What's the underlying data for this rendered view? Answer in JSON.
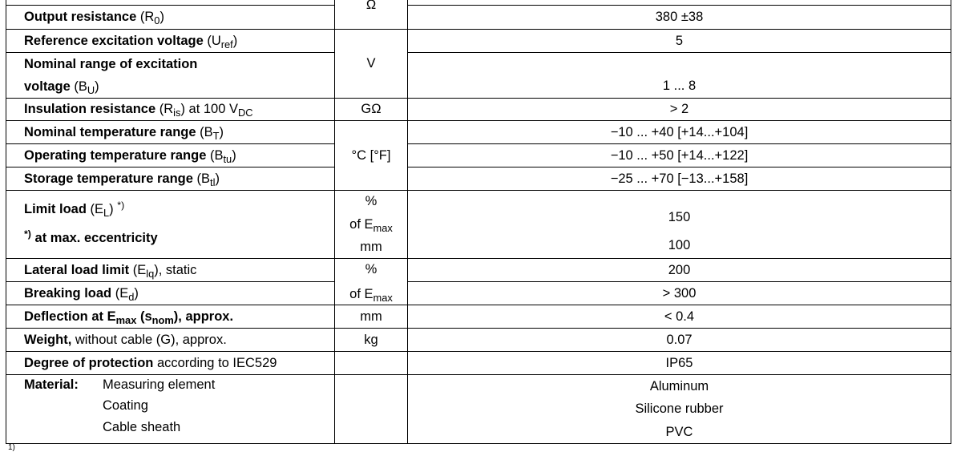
{
  "rows": [
    {
      "label": [],
      "unit": "Ω",
      "value": ""
    },
    {
      "label": [
        {
          "t": "Output resistance",
          "s": "b"
        },
        {
          "t": " (R",
          "s": "n"
        },
        {
          "t": "0",
          "s": "sub"
        },
        {
          "t": ")",
          "s": "n"
        }
      ],
      "value": "380 ±38"
    },
    {
      "label": [
        {
          "t": "Reference excitation voltage",
          "s": "b"
        },
        {
          "t": " (U",
          "s": "n"
        },
        {
          "t": "ref",
          "s": "sub"
        },
        {
          "t": ")",
          "s": "n"
        }
      ],
      "unit": "V",
      "value": "5"
    },
    {
      "label": [
        {
          "t": "Nominal range of excitation",
          "s": "b"
        },
        {
          "t": "",
          "s": "br"
        },
        {
          "t": "voltage",
          "s": "b"
        },
        {
          "t": " (B",
          "s": "n"
        },
        {
          "t": "U",
          "s": "sub"
        },
        {
          "t": ")",
          "s": "n"
        }
      ],
      "value": "1 ... 8"
    },
    {
      "label": [
        {
          "t": "Insulation resistance",
          "s": "b"
        },
        {
          "t": " (R",
          "s": "n"
        },
        {
          "t": "is",
          "s": "sub"
        },
        {
          "t": ") at 100 V",
          "s": "n"
        },
        {
          "t": "DC",
          "s": "sub"
        }
      ],
      "unit": "GΩ",
      "value": "> 2"
    },
    {
      "label": [
        {
          "t": "Nominal temperature range",
          "s": "b"
        },
        {
          "t": " (B",
          "s": "n"
        },
        {
          "t": "T",
          "s": "sub"
        },
        {
          "t": ")",
          "s": "n"
        }
      ],
      "unit": "°C [°F]",
      "value": "−10 ... +40 [+14...+104]"
    },
    {
      "label": [
        {
          "t": "Operating temperature range",
          "s": "b"
        },
        {
          "t": " (B",
          "s": "n"
        },
        {
          "t": "tu",
          "s": "sub"
        },
        {
          "t": ")",
          "s": "n"
        }
      ],
      "value": "−10 ... +50 [+14...+122]"
    },
    {
      "label": [
        {
          "t": "Storage temperature range",
          "s": "b"
        },
        {
          "t": " (B",
          "s": "n"
        },
        {
          "t": "tl",
          "s": "sub"
        },
        {
          "t": ")",
          "s": "n"
        }
      ],
      "value": "−25 ... +70 [−13...+158]"
    },
    {
      "label": [
        {
          "t": "Limit load",
          "s": "b"
        },
        {
          "t": " (E",
          "s": "n"
        },
        {
          "t": "L",
          "s": "sub"
        },
        {
          "t": ") ",
          "s": "n"
        },
        {
          "t": "*)",
          "s": "sup"
        },
        {
          "t": "",
          "s": "gap"
        },
        {
          "t": "*)",
          "s": "bsup"
        },
        {
          "t": " at max. eccentricity",
          "s": "b"
        }
      ],
      "unit_lines": [
        {
          "t": "%"
        },
        {
          "t": "of E",
          "sub": "max"
        },
        {
          "t": "mm"
        }
      ],
      "values": [
        "150",
        "100"
      ]
    },
    {
      "label": [
        {
          "t": "Lateral load limit",
          "s": "b"
        },
        {
          "t": " (E",
          "s": "n"
        },
        {
          "t": "lq",
          "s": "sub"
        },
        {
          "t": "), static",
          "s": "n"
        }
      ],
      "unit_lines": [
        {
          "t": "%"
        },
        {
          "t": "of E",
          "sub": "max"
        }
      ],
      "value": "200"
    },
    {
      "label": [
        {
          "t": "Breaking load",
          "s": "b"
        },
        {
          "t": " (E",
          "s": "n"
        },
        {
          "t": "d",
          "s": "sub"
        },
        {
          "t": ")",
          "s": "n"
        }
      ],
      "value": "> 300"
    },
    {
      "label": [
        {
          "t": "Deflection at E",
          "s": "b"
        },
        {
          "t": "max",
          "s": "bsub"
        },
        {
          "t": " (s",
          "s": "b"
        },
        {
          "t": "nom",
          "s": "bsub"
        },
        {
          "t": "), approx.",
          "s": "b"
        }
      ],
      "unit": "mm",
      "value": "< 0.4"
    },
    {
      "label": [
        {
          "t": "Weight,",
          "s": "b"
        },
        {
          "t": " without cable (G), approx.",
          "s": "n"
        }
      ],
      "unit": "kg",
      "value": "0.07"
    },
    {
      "label": [
        {
          "t": "Degree of protection",
          "s": "b"
        },
        {
          "t": " according to IEC529",
          "s": "n"
        }
      ],
      "unit": "",
      "value": "IP65"
    },
    {
      "material": {
        "label": "Material:",
        "items": [
          "Measuring element",
          "Coating",
          "Cable sheath"
        ]
      },
      "unit": "",
      "values": [
        "Aluminum",
        "Silicone rubber",
        "PVC"
      ]
    }
  ],
  "footnote": "1)"
}
